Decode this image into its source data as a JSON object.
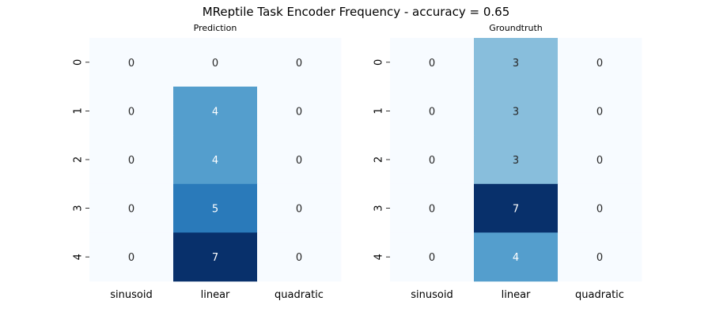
{
  "figure": {
    "suptitle": "MReptile Task Encoder Frequency - accuracy = 0.65"
  },
  "chart_data": [
    {
      "type": "heatmap",
      "title": "Prediction",
      "columns": [
        "sinusoid",
        "linear",
        "quadratic"
      ],
      "rows": [
        "0",
        "1",
        "2",
        "3",
        "4"
      ],
      "values": [
        [
          0,
          0,
          0
        ],
        [
          0,
          4,
          0
        ],
        [
          0,
          4,
          0
        ],
        [
          0,
          5,
          0
        ],
        [
          0,
          7,
          0
        ]
      ],
      "colormap": "Blues",
      "vmin": 0,
      "vmax": 7,
      "colorbar": false
    },
    {
      "type": "heatmap",
      "title": "Groundtruth",
      "columns": [
        "sinusoid",
        "linear",
        "quadratic"
      ],
      "rows": [
        "0",
        "1",
        "2",
        "3",
        "4"
      ],
      "values": [
        [
          0,
          3,
          0
        ],
        [
          0,
          3,
          0
        ],
        [
          0,
          3,
          0
        ],
        [
          0,
          7,
          0
        ],
        [
          0,
          4,
          0
        ]
      ],
      "colormap": "Blues",
      "vmin": 0,
      "vmax": 7,
      "colorbar": false
    }
  ]
}
